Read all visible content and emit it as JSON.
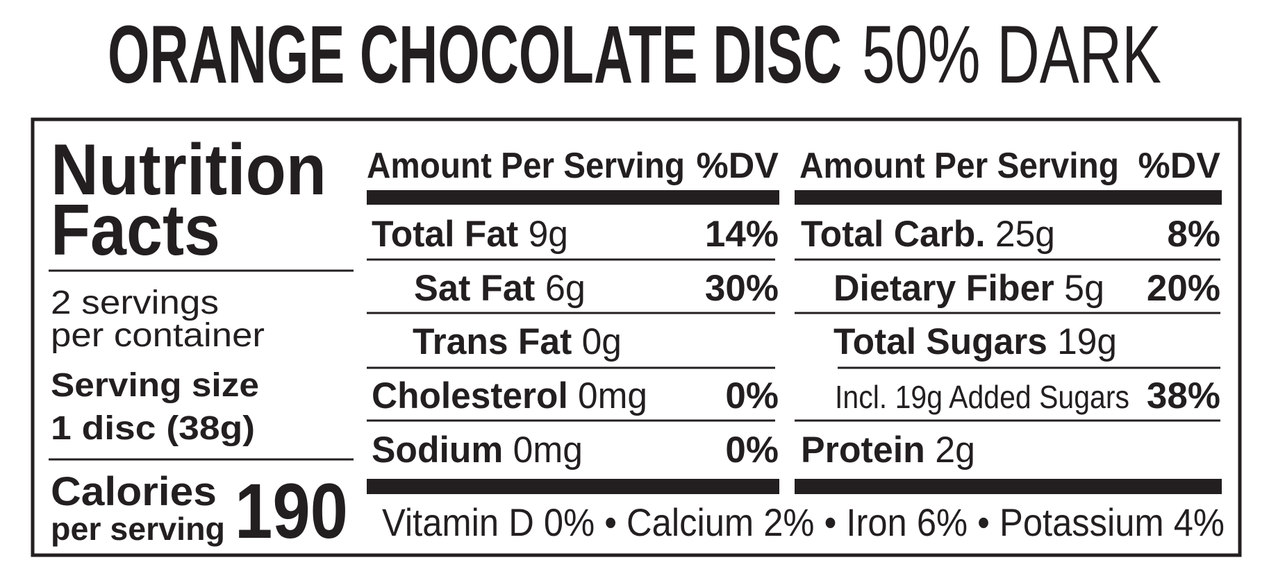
{
  "title": {
    "product": "ORANGE CHOCOLATE DISC",
    "variant": "50% DARK"
  },
  "heading": [
    "Nutrition",
    "Facts"
  ],
  "servings": [
    "2 servings",
    "per container"
  ],
  "serving_size": {
    "label": "Serving size",
    "amount": "1 disc (38g)"
  },
  "calories": {
    "label": [
      "Calories",
      "per serving"
    ],
    "value": "190"
  },
  "columns": [
    {
      "header": {
        "amount": "Amount Per Serving",
        "dv": "%DV"
      },
      "rows": [
        {
          "name": "Total Fat",
          "amount": "9g",
          "dv": "14%"
        },
        {
          "name": "Sat Fat",
          "amount": "6g",
          "dv": "30%"
        },
        {
          "name": "Trans Fat",
          "amount": "0g"
        },
        {
          "name": "Cholesterol",
          "amount": "0mg",
          "dv": "0%"
        },
        {
          "name": "Sodium",
          "amount": "0mg",
          "dv": "0%"
        }
      ]
    },
    {
      "header": {
        "amount": "Amount Per Serving",
        "dv": "%DV"
      },
      "rows": [
        {
          "name": "Total Carb.",
          "amount": "25g",
          "dv": "8%"
        },
        {
          "name": "Dietary Fiber",
          "amount": "5g",
          "dv": "20%"
        },
        {
          "name": "Total Sugars",
          "amount": "19g"
        },
        {
          "amount": "Incl. 19g Added Sugars",
          "dv": "38%"
        },
        {
          "name": "Protein",
          "amount": "2g"
        }
      ]
    }
  ],
  "vitamins": "Vitamin D 0% • Calcium 2% • Iron 6% • Potassium 4%"
}
